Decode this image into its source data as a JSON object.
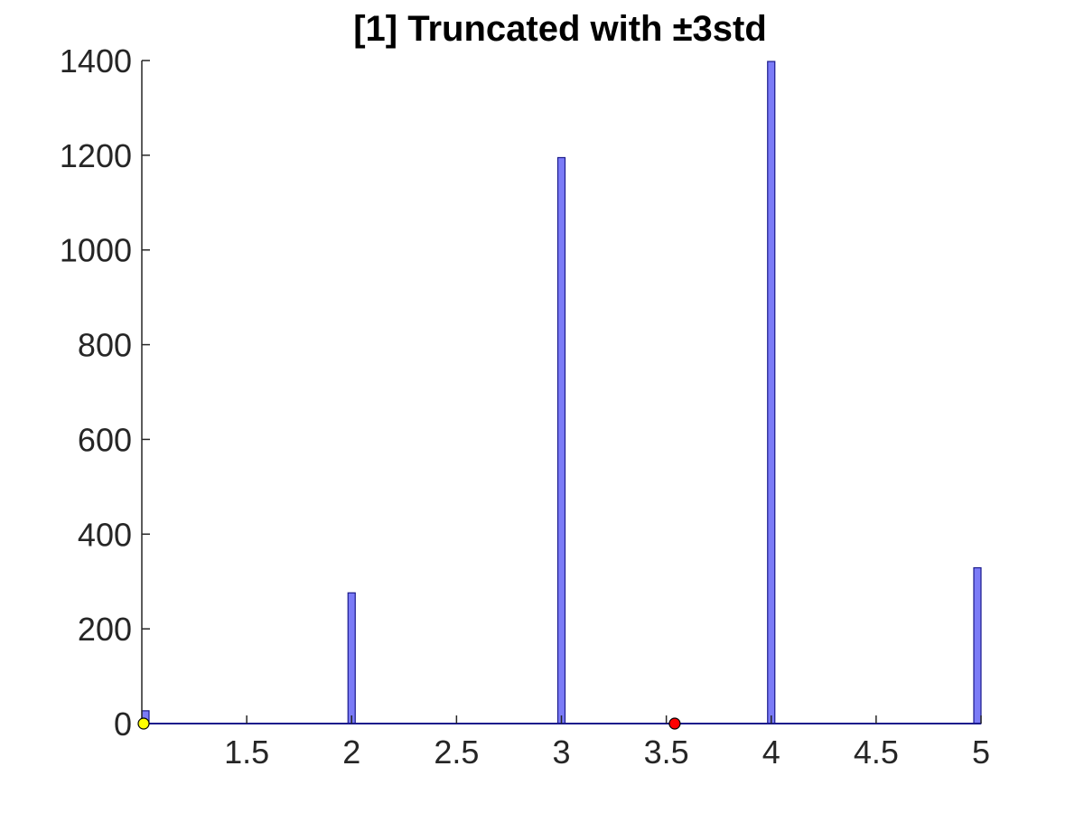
{
  "chart_data": {
    "type": "bar",
    "title": "[1] Truncated with ±3std",
    "xlabel": "",
    "ylabel": "",
    "xlim": [
      1.0,
      5.0
    ],
    "ylim": [
      0,
      1400
    ],
    "x_ticks": [
      1.5,
      2,
      2.5,
      3,
      3.5,
      4,
      4.5,
      5
    ],
    "x_tick_labels": [
      "1.5",
      "2",
      "2.5",
      "3",
      "3.5",
      "4",
      "4.5",
      "5"
    ],
    "y_ticks": [
      0,
      200,
      400,
      600,
      800,
      1000,
      1200,
      1400
    ],
    "y_tick_labels": [
      "0",
      "200",
      "400",
      "600",
      "800",
      "1000",
      "1200",
      "1400"
    ],
    "bars": [
      {
        "x": 1.0,
        "value": 27
      },
      {
        "x": 2.0,
        "value": 276
      },
      {
        "x": 3.0,
        "value": 1195
      },
      {
        "x": 4.0,
        "value": 1398
      },
      {
        "x": 5.0,
        "value": 329
      }
    ],
    "markers": [
      {
        "name": "min-marker",
        "x": 1.0,
        "y": 0,
        "color": "#ffff00"
      },
      {
        "name": "mean-marker",
        "x": 3.54,
        "y": 0,
        "color": "#ff0000"
      }
    ],
    "bar_color": "#7b7bf7",
    "bar_edge_color": "#1a1a8c",
    "grid": false,
    "legend": "none"
  }
}
